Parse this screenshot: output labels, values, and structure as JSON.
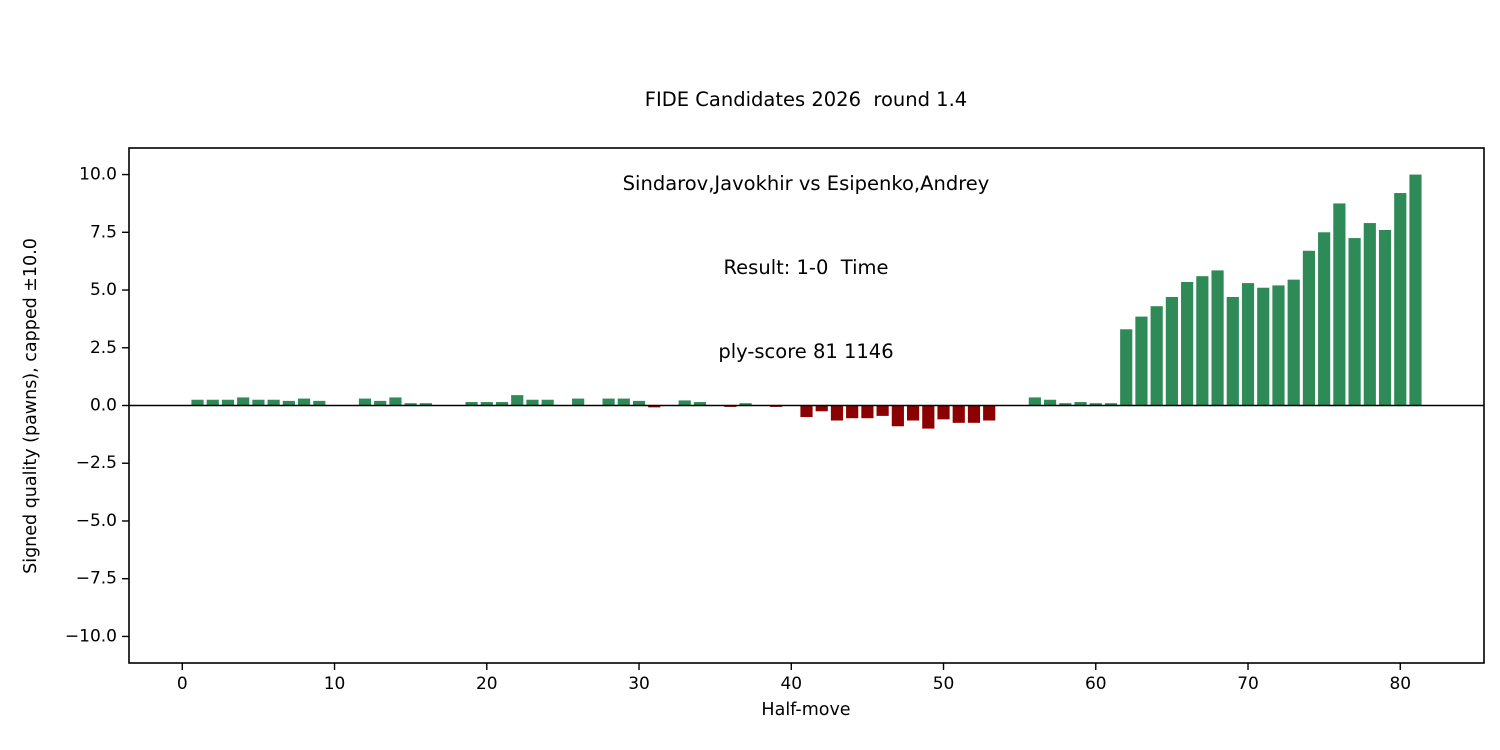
{
  "title": {
    "line1": "FIDE Candidates 2026  round 1.4",
    "line2": "Sindarov,Javokhir vs Esipenko,Andrey",
    "line3": "Result: 1-0  Time",
    "line4": "ply-score 81 1146"
  },
  "chart_data": {
    "type": "bar",
    "title": "FIDE Candidates 2026  round 1.4\nSindarov,Javokhir vs Esipenko,Andrey\nResult: 1-0  Time\nply-score 81 1146",
    "xlabel": "Half-move",
    "ylabel": "Signed quality (pawns), capped ±10.0",
    "x_first": 1,
    "values": [
      0.25,
      0.25,
      0.25,
      0.35,
      0.25,
      0.25,
      0.2,
      0.3,
      0.2,
      0,
      0,
      0.3,
      0.2,
      0.35,
      0.1,
      0.1,
      0,
      0,
      0.15,
      0.15,
      0.15,
      0.45,
      0.25,
      0.25,
      0,
      0.3,
      0,
      0.3,
      0.3,
      0.2,
      -0.08,
      0,
      0.22,
      0.15,
      0,
      -0.06,
      0.1,
      0,
      -0.06,
      0,
      -0.5,
      -0.25,
      -0.65,
      -0.55,
      -0.55,
      -0.45,
      -0.9,
      -0.65,
      -1.0,
      -0.6,
      -0.75,
      -0.75,
      -0.65,
      0,
      0,
      0.35,
      0.25,
      0.1,
      0.15,
      0.1,
      0.1,
      3.3,
      3.85,
      4.3,
      4.7,
      5.35,
      5.6,
      5.85,
      4.7,
      5.3,
      5.1,
      5.2,
      5.45,
      6.7,
      7.5,
      8.75,
      7.25,
      7.9,
      7.6,
      9.2,
      10.0
    ],
    "xticks": [
      0,
      10,
      20,
      30,
      40,
      50,
      60,
      70,
      80
    ],
    "yticks": [
      10.0,
      7.5,
      5.0,
      2.5,
      0.0,
      -2.5,
      -5.0,
      -7.5,
      -10.0
    ],
    "xlim": [
      -3.5,
      85.5
    ],
    "ylim": [
      -11.15,
      11.15
    ],
    "bar_width": 0.8,
    "positive_color": "#2e8b57",
    "negative_color": "#8b0000",
    "axis_color": "#000000",
    "grid": false,
    "zero_line": true,
    "legend": "none"
  }
}
